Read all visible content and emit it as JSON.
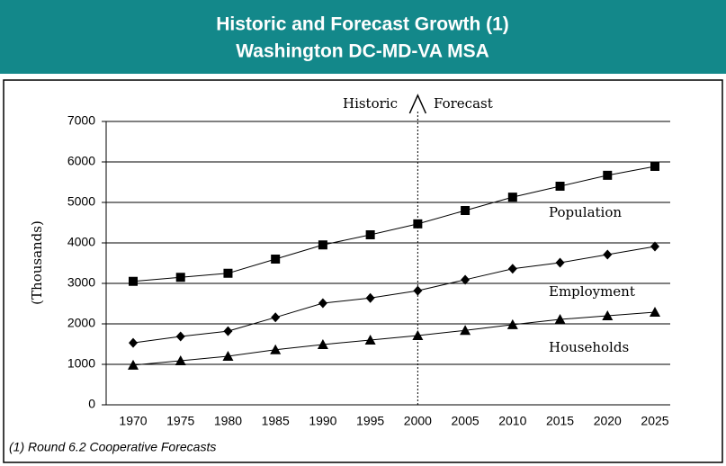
{
  "chart_data": {
    "type": "line",
    "title": "Historic and Forecast Growth (1)",
    "subtitle": "Washington DC-MD-VA MSA",
    "y_label": "(Thousands)",
    "annotations": {
      "left": "Historic",
      "right": "Forecast",
      "divider_x": 2000
    },
    "note": "(1) Round 6.2 Cooperative Forecasts",
    "x": [
      1970,
      1975,
      1980,
      1985,
      1990,
      1995,
      2000,
      2005,
      2010,
      2015,
      2020,
      2025
    ],
    "xlim": [
      1970,
      2025
    ],
    "xticks": [
      1970,
      1975,
      1980,
      1985,
      1990,
      1995,
      2000,
      2005,
      2010,
      2015,
      2020,
      2025
    ],
    "ylim": [
      0,
      7000
    ],
    "yticks": [
      0,
      1000,
      2000,
      3000,
      4000,
      5000,
      6000,
      7000
    ],
    "grid": true,
    "series": [
      {
        "name": "Population",
        "color": "#000000",
        "marker": "square",
        "values": [
          3050,
          3150,
          3250,
          3600,
          3950,
          4200,
          4470,
          4800,
          5130,
          5400,
          5670,
          5890
        ]
      },
      {
        "name": "Employment",
        "color": "#000000",
        "marker": "diamond",
        "values": [
          1530,
          1690,
          1820,
          2160,
          2510,
          2640,
          2820,
          3090,
          3360,
          3510,
          3710,
          3910
        ]
      },
      {
        "name": "Households",
        "color": "#000000",
        "marker": "triangle",
        "values": [
          980,
          1090,
          1200,
          1360,
          1490,
          1600,
          1710,
          1840,
          1980,
          2110,
          2200,
          2290
        ]
      }
    ]
  }
}
